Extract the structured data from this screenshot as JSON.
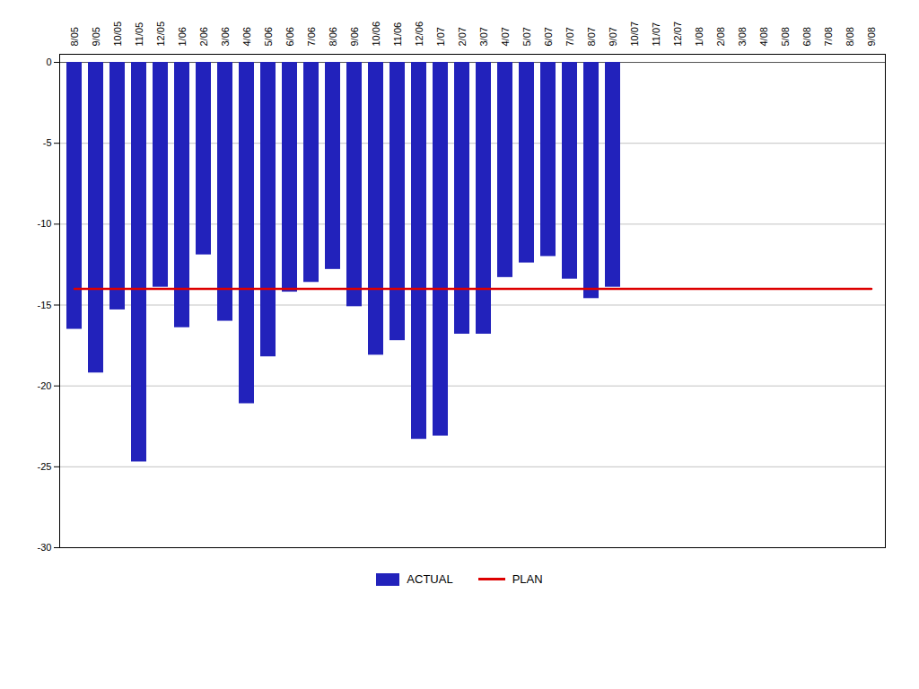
{
  "chart_data": {
    "type": "bar",
    "categories": [
      "8/05",
      "9/05",
      "10/05",
      "11/05",
      "12/05",
      "1/06",
      "2/06",
      "3/06",
      "4/06",
      "5/06",
      "6/06",
      "7/06",
      "8/06",
      "9/06",
      "10/06",
      "11/06",
      "12/06",
      "1/07",
      "2/07",
      "3/07",
      "4/07",
      "5/07",
      "6/07",
      "7/07",
      "8/07",
      "9/07",
      "10/07",
      "11/07",
      "12/07",
      "1/08",
      "2/08",
      "3/08",
      "4/08",
      "5/08",
      "6/08",
      "7/08",
      "8/08",
      "9/08"
    ],
    "series": [
      {
        "name": "ACTUAL",
        "type": "bar",
        "color": "#2222bb",
        "values": [
          -16.5,
          -19.2,
          -15.3,
          -24.7,
          -13.9,
          -16.4,
          -11.9,
          -16.0,
          -21.1,
          -18.2,
          -14.2,
          -13.6,
          -12.8,
          -15.1,
          -18.1,
          -17.2,
          -23.3,
          -23.1,
          -16.8,
          -16.8,
          -13.3,
          -12.4,
          -12.0,
          -13.4,
          -14.6,
          -13.9,
          null,
          null,
          null,
          null,
          null,
          null,
          null,
          null,
          null,
          null,
          null,
          null
        ]
      },
      {
        "name": "PLAN",
        "type": "line",
        "color": "#dd0000",
        "values": [
          -14,
          -14,
          -14,
          -14,
          -14,
          -14,
          -14,
          -14,
          -14,
          -14,
          -14,
          -14,
          -14,
          -14,
          -14,
          -14,
          -14,
          -14,
          -14,
          -14,
          -14,
          -14,
          -14,
          -14,
          -14,
          -14,
          -14,
          -14,
          -14,
          -14,
          -14,
          -14,
          -14,
          -14,
          -14,
          -14,
          -14,
          -14
        ]
      }
    ],
    "ylim": [
      -30,
      0.5
    ],
    "yticks": [
      0,
      -5,
      -10,
      -15,
      -20,
      -25,
      -30
    ],
    "grid": true,
    "legend": "bottom"
  }
}
